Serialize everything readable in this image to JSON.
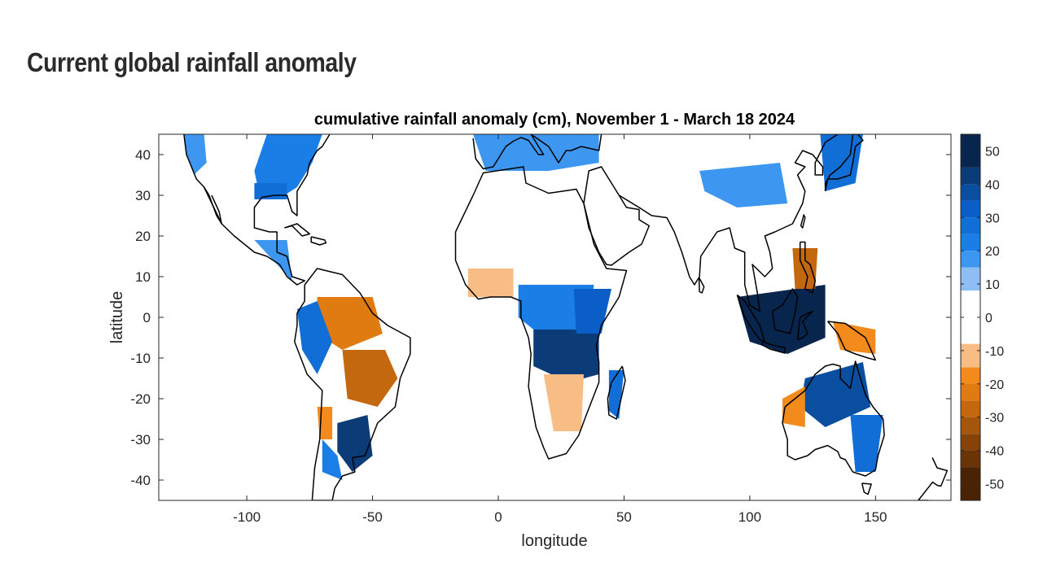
{
  "header": {
    "title": "Current global rainfall anomaly"
  },
  "chart_data": {
    "type": "heatmap",
    "title": "cumulative rainfall anomaly (cm), November 1 - March 18 2024",
    "xlabel": "longitude",
    "ylabel": "latitude",
    "xlim": [
      -135,
      180
    ],
    "ylim": [
      -45,
      45
    ],
    "xticks": [
      -100,
      -50,
      0,
      50,
      100,
      150
    ],
    "yticks": [
      40,
      30,
      20,
      10,
      0,
      -10,
      -20,
      -30,
      -40
    ],
    "grid": false,
    "colorbar": {
      "placement": "right",
      "range": [
        -55,
        55
      ],
      "ticks": [
        50,
        40,
        30,
        20,
        10,
        0,
        -10,
        -20,
        -30,
        -40,
        -50
      ],
      "bins": [
        {
          "from": 45,
          "to": 55,
          "color": "#08254d"
        },
        {
          "from": 40,
          "to": 45,
          "color": "#0c3c78"
        },
        {
          "from": 35,
          "to": 40,
          "color": "#0a4ea0"
        },
        {
          "from": 30,
          "to": 35,
          "color": "#0b5ec7"
        },
        {
          "from": 25,
          "to": 30,
          "color": "#106ed6"
        },
        {
          "from": 20,
          "to": 25,
          "color": "#1a7ee6"
        },
        {
          "from": 15,
          "to": 20,
          "color": "#3d97f0"
        },
        {
          "from": 8,
          "to": 15,
          "color": "#8fbef5"
        },
        {
          "from": -8,
          "to": 8,
          "color": "#ffffff"
        },
        {
          "from": -15,
          "to": -8,
          "color": "#f7bd85"
        },
        {
          "from": -20,
          "to": -15,
          "color": "#f28a1c"
        },
        {
          "from": -25,
          "to": -20,
          "color": "#e07b12"
        },
        {
          "from": -30,
          "to": -25,
          "color": "#c46810"
        },
        {
          "from": -35,
          "to": -30,
          "color": "#a5560e"
        },
        {
          "from": -40,
          "to": -35,
          "color": "#854309"
        },
        {
          "from": -45,
          "to": -40,
          "color": "#6a3407"
        },
        {
          "from": -55,
          "to": -45,
          "color": "#4a2305"
        }
      ]
    },
    "anomaly_regions": [
      {
        "region": "eastern-north-america",
        "level": 20,
        "polygon": [
          [
            -92,
            45
          ],
          [
            -70,
            45
          ],
          [
            -74,
            38
          ],
          [
            -80,
            32
          ],
          [
            -85,
            30
          ],
          [
            -95,
            30
          ],
          [
            -97,
            36
          ]
        ]
      },
      {
        "region": "western-north-america",
        "level": 15,
        "polygon": [
          [
            -125,
            45
          ],
          [
            -117,
            45
          ],
          [
            -116,
            38
          ],
          [
            -121,
            35
          ],
          [
            -124,
            40
          ]
        ]
      },
      {
        "region": "gulf-coast",
        "level": 25,
        "polygon": [
          [
            -97,
            33
          ],
          [
            -84,
            33
          ],
          [
            -84,
            29
          ],
          [
            -97,
            29
          ]
        ]
      },
      {
        "region": "central-america",
        "level": 15,
        "polygon": [
          [
            -97,
            19
          ],
          [
            -84,
            19
          ],
          [
            -82,
            9
          ],
          [
            -88,
            13
          ]
        ]
      },
      {
        "region": "north-amazon",
        "level": -25,
        "polygon": [
          [
            -72,
            5
          ],
          [
            -50,
            5
          ],
          [
            -46,
            -4
          ],
          [
            -62,
            -8
          ],
          [
            -72,
            -4
          ]
        ]
      },
      {
        "region": "amazon-mixed",
        "level": 25,
        "polygon": [
          [
            -80,
            2
          ],
          [
            -72,
            4
          ],
          [
            -66,
            -6
          ],
          [
            -72,
            -14
          ],
          [
            -78,
            -8
          ]
        ]
      },
      {
        "region": "brazil-highlands",
        "level": -30,
        "polygon": [
          [
            -62,
            -8
          ],
          [
            -45,
            -8
          ],
          [
            -40,
            -15
          ],
          [
            -48,
            -22
          ],
          [
            -60,
            -20
          ]
        ]
      },
      {
        "region": "south-brazil",
        "level": 40,
        "polygon": [
          [
            -64,
            -26
          ],
          [
            -52,
            -24
          ],
          [
            -50,
            -34
          ],
          [
            -58,
            -38
          ],
          [
            -64,
            -33
          ]
        ]
      },
      {
        "region": "argentina",
        "level": 20,
        "polygon": [
          [
            -70,
            -30
          ],
          [
            -64,
            -34
          ],
          [
            -62,
            -40
          ],
          [
            -70,
            -38
          ]
        ]
      },
      {
        "region": "andes-south",
        "level": -20,
        "polygon": [
          [
            -72,
            -22
          ],
          [
            -66,
            -22
          ],
          [
            -66,
            -30
          ],
          [
            -71,
            -30
          ]
        ]
      },
      {
        "region": "equatorial-africa",
        "level": 20,
        "polygon": [
          [
            8,
            8
          ],
          [
            38,
            8
          ],
          [
            36,
            -3
          ],
          [
            20,
            -6
          ],
          [
            8,
            0
          ]
        ]
      },
      {
        "region": "congo-tanzania",
        "level": 40,
        "polygon": [
          [
            14,
            -3
          ],
          [
            40,
            -3
          ],
          [
            40,
            -14
          ],
          [
            28,
            -16
          ],
          [
            14,
            -12
          ]
        ]
      },
      {
        "region": "east-africa",
        "level": 30,
        "polygon": [
          [
            30,
            7
          ],
          [
            45,
            7
          ],
          [
            41,
            -4
          ],
          [
            31,
            -4
          ]
        ]
      },
      {
        "region": "west-africa",
        "level": -10,
        "polygon": [
          [
            -12,
            12
          ],
          [
            6,
            12
          ],
          [
            6,
            5
          ],
          [
            -12,
            5
          ]
        ]
      },
      {
        "region": "southern-africa",
        "level": -15,
        "polygon": [
          [
            18,
            -14
          ],
          [
            34,
            -14
          ],
          [
            33,
            -28
          ],
          [
            22,
            -28
          ]
        ]
      },
      {
        "region": "madagascar",
        "level": 25,
        "polygon": [
          [
            44,
            -13
          ],
          [
            50,
            -13
          ],
          [
            48,
            -25
          ],
          [
            44,
            -23
          ]
        ]
      },
      {
        "region": "europe",
        "level": 15,
        "polygon": [
          [
            -10,
            45
          ],
          [
            40,
            45
          ],
          [
            40,
            38
          ],
          [
            20,
            36
          ],
          [
            -5,
            36
          ]
        ]
      },
      {
        "region": "tibet-china",
        "level": 15,
        "polygon": [
          [
            80,
            36
          ],
          [
            112,
            38
          ],
          [
            115,
            28
          ],
          [
            95,
            27
          ],
          [
            82,
            31
          ]
        ]
      },
      {
        "region": "maritime-continent",
        "level": 45,
        "polygon": [
          [
            95,
            5
          ],
          [
            130,
            8
          ],
          [
            130,
            -5
          ],
          [
            115,
            -9
          ],
          [
            100,
            -6
          ]
        ]
      },
      {
        "region": "philippines",
        "level": -30,
        "polygon": [
          [
            117,
            17
          ],
          [
            127,
            17
          ],
          [
            126,
            7
          ],
          [
            118,
            7
          ]
        ]
      },
      {
        "region": "japan",
        "level": 25,
        "polygon": [
          [
            128,
            45
          ],
          [
            145,
            45
          ],
          [
            142,
            33
          ],
          [
            130,
            31
          ]
        ]
      },
      {
        "region": "new-guinea",
        "level": -20,
        "polygon": [
          [
            133,
            -1
          ],
          [
            150,
            -3
          ],
          [
            150,
            -9
          ],
          [
            136,
            -8
          ]
        ]
      },
      {
        "region": "northern-australia",
        "level": 35,
        "polygon": [
          [
            122,
            -15
          ],
          [
            145,
            -11
          ],
          [
            148,
            -22
          ],
          [
            130,
            -27
          ],
          [
            120,
            -22
          ]
        ]
      },
      {
        "region": "western-australia-coast",
        "level": -20,
        "polygon": [
          [
            113,
            -20
          ],
          [
            122,
            -17
          ],
          [
            122,
            -27
          ],
          [
            113,
            -26
          ]
        ]
      },
      {
        "region": "eastern-australia",
        "level": 25,
        "polygon": [
          [
            140,
            -24
          ],
          [
            153,
            -24
          ],
          [
            150,
            -38
          ],
          [
            142,
            -38
          ]
        ]
      }
    ]
  }
}
